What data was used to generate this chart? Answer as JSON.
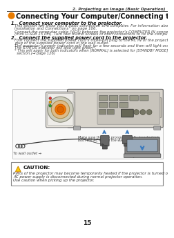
{
  "page_number": "15",
  "header_text": "2. Projecting an Image (Basic Operation)",
  "section_number": "2",
  "section_title": "Connecting Your Computer/Connecting the Power Cord",
  "step1_title": "1.  Connect your computer to the projector.",
  "step1_body1": "This section will show you a basic connection to a computer. For information about other connections, see “6.",
  "step1_body1b": "Installation and Connections” on page 106.",
  "step1_body2": "Connect the computer cable (VGA) between the projector’s COMPUTER IN connector and the computer’s port",
  "step1_body2b": "(mini D-Sub 15 Pin). Turn two thumb screws of both connectors to fix the computer cable (VGA).",
  "step2_title": "2.  Connect the supplied power cord to the projector.",
  "step2_body1": "First connect the supplied power cord’s three-pin plug to the AC IN of the projector, and then connect the other",
  "step2_body1b": "plug of the supplied power cord in the wall outlet.",
  "step2_body2": "The projector’s power indicator will flash for a few seconds and then will light orange* (standby mode).",
  "step2_body3": "The STATUS indicator will also light green*.",
  "step2_body4": "* This will apply for both indicators when [NORMAL] is selected for [STANDBY MODE]. See the Power Indicator",
  "step2_body4b": "  section.(→ page 126)",
  "caution_title": "CAUTION:",
  "caution_body1": "Parts of the projector may become temporarily heated if the projector is turned off with the POWER button or if the",
  "caution_body2": "AC power supply is disconnected during normal projector operation.",
  "caution_body3": "Use caution when picking up the projector.",
  "bg_color": "#ffffff",
  "text_color": "#000000",
  "header_line_color": "#000000",
  "orange_color": "#e87b00",
  "blue_color": "#4472c4",
  "blue_arrow": "#3a7abf",
  "caution_bg": "#ffffff",
  "caution_border": "#888888",
  "gray_text": "#444444",
  "link_color": "#4472c4"
}
